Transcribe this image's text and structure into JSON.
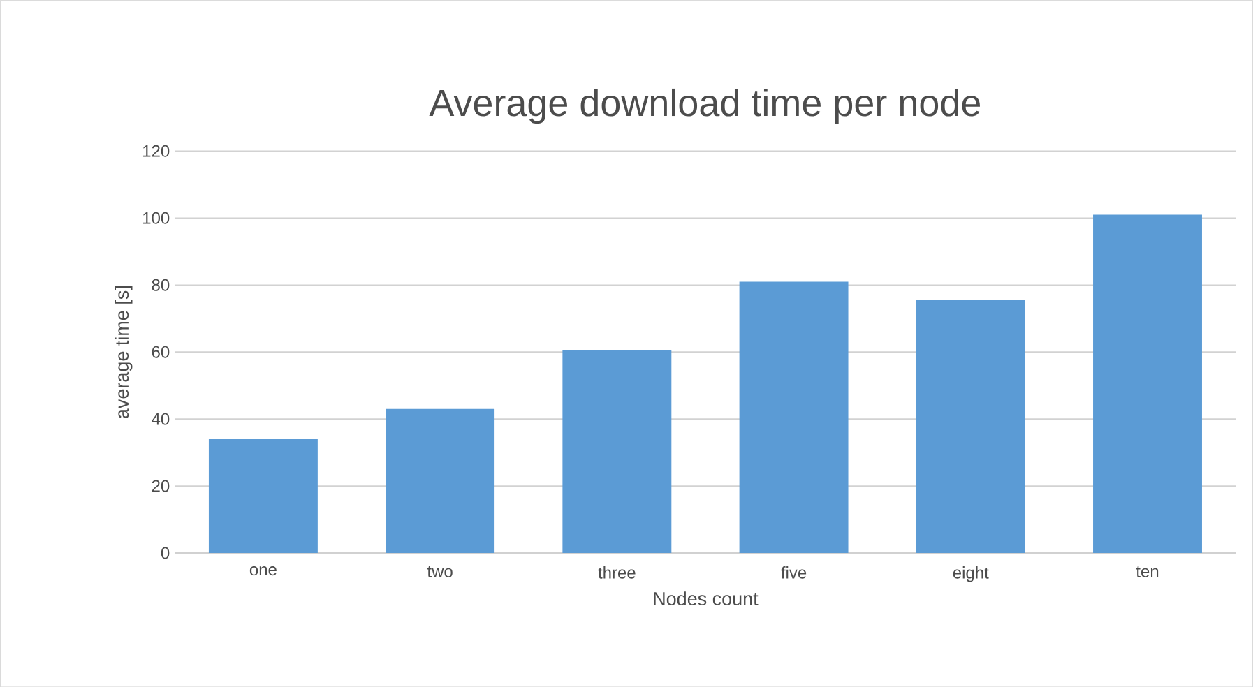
{
  "chart_data": {
    "type": "bar",
    "title": "Average download time per node",
    "xlabel": "Nodes count",
    "ylabel": "average time [s]",
    "categories": [
      "one",
      "two",
      "three",
      "five",
      "eight",
      "ten"
    ],
    "values": [
      34,
      43,
      60.5,
      81,
      75.5,
      101
    ],
    "color": "#5b9bd5",
    "ylim": [
      0,
      120
    ],
    "yticks": [
      0,
      20,
      40,
      60,
      80,
      100,
      120
    ],
    "grid": "y"
  }
}
